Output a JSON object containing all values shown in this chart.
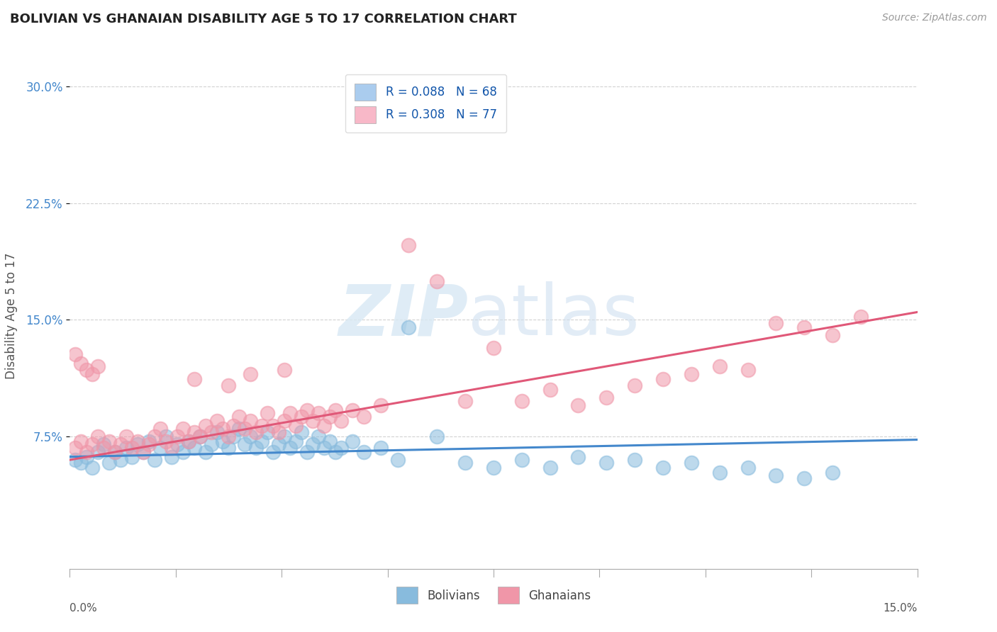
{
  "title": "BOLIVIAN VS GHANAIAN DISABILITY AGE 5 TO 17 CORRELATION CHART",
  "source_text": "Source: ZipAtlas.com",
  "ylabel": "Disability Age 5 to 17",
  "xlim": [
    0.0,
    0.15
  ],
  "ylim": [
    -0.01,
    0.315
  ],
  "yticks": [
    0.075,
    0.15,
    0.225,
    0.3
  ],
  "ytick_labels": [
    "7.5%",
    "15.0%",
    "22.5%",
    "30.0%"
  ],
  "legend_r_entries": [
    {
      "label": "R = 0.088   N = 68",
      "color": "#aaccee"
    },
    {
      "label": "R = 0.308   N = 77",
      "color": "#f8b8c8"
    }
  ],
  "bolivian_color": "#88bbdd",
  "ghanaian_color": "#f096a8",
  "trend_bolivian_color": "#4488cc",
  "trend_ghanaian_color": "#e05878",
  "watermark_zip": "ZIP",
  "watermark_atlas": "atlas",
  "bolivian_points": [
    [
      0.001,
      0.06
    ],
    [
      0.002,
      0.058
    ],
    [
      0.003,
      0.062
    ],
    [
      0.004,
      0.055
    ],
    [
      0.005,
      0.065
    ],
    [
      0.006,
      0.07
    ],
    [
      0.007,
      0.058
    ],
    [
      0.008,
      0.065
    ],
    [
      0.009,
      0.06
    ],
    [
      0.01,
      0.068
    ],
    [
      0.011,
      0.062
    ],
    [
      0.012,
      0.07
    ],
    [
      0.013,
      0.065
    ],
    [
      0.014,
      0.072
    ],
    [
      0.015,
      0.06
    ],
    [
      0.016,
      0.068
    ],
    [
      0.017,
      0.075
    ],
    [
      0.018,
      0.062
    ],
    [
      0.019,
      0.07
    ],
    [
      0.02,
      0.065
    ],
    [
      0.021,
      0.072
    ],
    [
      0.022,
      0.068
    ],
    [
      0.023,
      0.075
    ],
    [
      0.024,
      0.065
    ],
    [
      0.025,
      0.07
    ],
    [
      0.026,
      0.078
    ],
    [
      0.027,
      0.072
    ],
    [
      0.028,
      0.068
    ],
    [
      0.029,
      0.075
    ],
    [
      0.03,
      0.08
    ],
    [
      0.031,
      0.07
    ],
    [
      0.032,
      0.075
    ],
    [
      0.033,
      0.068
    ],
    [
      0.034,
      0.072
    ],
    [
      0.035,
      0.078
    ],
    [
      0.036,
      0.065
    ],
    [
      0.037,
      0.07
    ],
    [
      0.038,
      0.075
    ],
    [
      0.039,
      0.068
    ],
    [
      0.04,
      0.072
    ],
    [
      0.041,
      0.078
    ],
    [
      0.042,
      0.065
    ],
    [
      0.043,
      0.07
    ],
    [
      0.044,
      0.075
    ],
    [
      0.045,
      0.068
    ],
    [
      0.046,
      0.072
    ],
    [
      0.047,
      0.065
    ],
    [
      0.048,
      0.068
    ],
    [
      0.05,
      0.072
    ],
    [
      0.052,
      0.065
    ],
    [
      0.055,
      0.068
    ],
    [
      0.058,
      0.06
    ],
    [
      0.06,
      0.145
    ],
    [
      0.065,
      0.075
    ],
    [
      0.07,
      0.058
    ],
    [
      0.075,
      0.055
    ],
    [
      0.08,
      0.06
    ],
    [
      0.085,
      0.055
    ],
    [
      0.09,
      0.062
    ],
    [
      0.095,
      0.058
    ],
    [
      0.1,
      0.06
    ],
    [
      0.105,
      0.055
    ],
    [
      0.11,
      0.058
    ],
    [
      0.115,
      0.052
    ],
    [
      0.12,
      0.055
    ],
    [
      0.125,
      0.05
    ],
    [
      0.13,
      0.048
    ],
    [
      0.135,
      0.052
    ]
  ],
  "ghanaian_points": [
    [
      0.001,
      0.068
    ],
    [
      0.002,
      0.072
    ],
    [
      0.003,
      0.065
    ],
    [
      0.004,
      0.07
    ],
    [
      0.005,
      0.075
    ],
    [
      0.006,
      0.068
    ],
    [
      0.007,
      0.072
    ],
    [
      0.008,
      0.065
    ],
    [
      0.009,
      0.07
    ],
    [
      0.01,
      0.075
    ],
    [
      0.011,
      0.068
    ],
    [
      0.012,
      0.072
    ],
    [
      0.013,
      0.065
    ],
    [
      0.014,
      0.07
    ],
    [
      0.015,
      0.075
    ],
    [
      0.016,
      0.08
    ],
    [
      0.017,
      0.072
    ],
    [
      0.018,
      0.068
    ],
    [
      0.019,
      0.075
    ],
    [
      0.02,
      0.08
    ],
    [
      0.021,
      0.072
    ],
    [
      0.022,
      0.078
    ],
    [
      0.023,
      0.075
    ],
    [
      0.024,
      0.082
    ],
    [
      0.025,
      0.078
    ],
    [
      0.026,
      0.085
    ],
    [
      0.027,
      0.08
    ],
    [
      0.028,
      0.075
    ],
    [
      0.029,
      0.082
    ],
    [
      0.03,
      0.088
    ],
    [
      0.031,
      0.08
    ],
    [
      0.032,
      0.085
    ],
    [
      0.033,
      0.078
    ],
    [
      0.034,
      0.082
    ],
    [
      0.035,
      0.09
    ],
    [
      0.036,
      0.082
    ],
    [
      0.037,
      0.078
    ],
    [
      0.038,
      0.085
    ],
    [
      0.039,
      0.09
    ],
    [
      0.04,
      0.082
    ],
    [
      0.041,
      0.088
    ],
    [
      0.042,
      0.092
    ],
    [
      0.043,
      0.085
    ],
    [
      0.044,
      0.09
    ],
    [
      0.045,
      0.082
    ],
    [
      0.046,
      0.088
    ],
    [
      0.047,
      0.092
    ],
    [
      0.048,
      0.085
    ],
    [
      0.05,
      0.092
    ],
    [
      0.052,
      0.088
    ],
    [
      0.055,
      0.095
    ],
    [
      0.06,
      0.198
    ],
    [
      0.065,
      0.175
    ],
    [
      0.07,
      0.098
    ],
    [
      0.075,
      0.132
    ],
    [
      0.08,
      0.098
    ],
    [
      0.085,
      0.105
    ],
    [
      0.09,
      0.095
    ],
    [
      0.095,
      0.1
    ],
    [
      0.1,
      0.108
    ],
    [
      0.105,
      0.112
    ],
    [
      0.11,
      0.115
    ],
    [
      0.115,
      0.12
    ],
    [
      0.12,
      0.118
    ],
    [
      0.125,
      0.148
    ],
    [
      0.13,
      0.145
    ],
    [
      0.135,
      0.14
    ],
    [
      0.14,
      0.152
    ],
    [
      0.001,
      0.128
    ],
    [
      0.002,
      0.122
    ],
    [
      0.003,
      0.118
    ],
    [
      0.004,
      0.115
    ],
    [
      0.005,
      0.12
    ],
    [
      0.022,
      0.112
    ],
    [
      0.028,
      0.108
    ],
    [
      0.032,
      0.115
    ],
    [
      0.038,
      0.118
    ]
  ],
  "bolivian_trend": [
    0.0,
    0.062,
    0.15,
    0.073
  ],
  "ghanaian_trend": [
    0.0,
    0.06,
    0.15,
    0.155
  ],
  "background_color": "#ffffff",
  "grid_color": "#cccccc",
  "title_color": "#222222",
  "ytick_color": "#4488cc",
  "axis_label_color": "#555555"
}
